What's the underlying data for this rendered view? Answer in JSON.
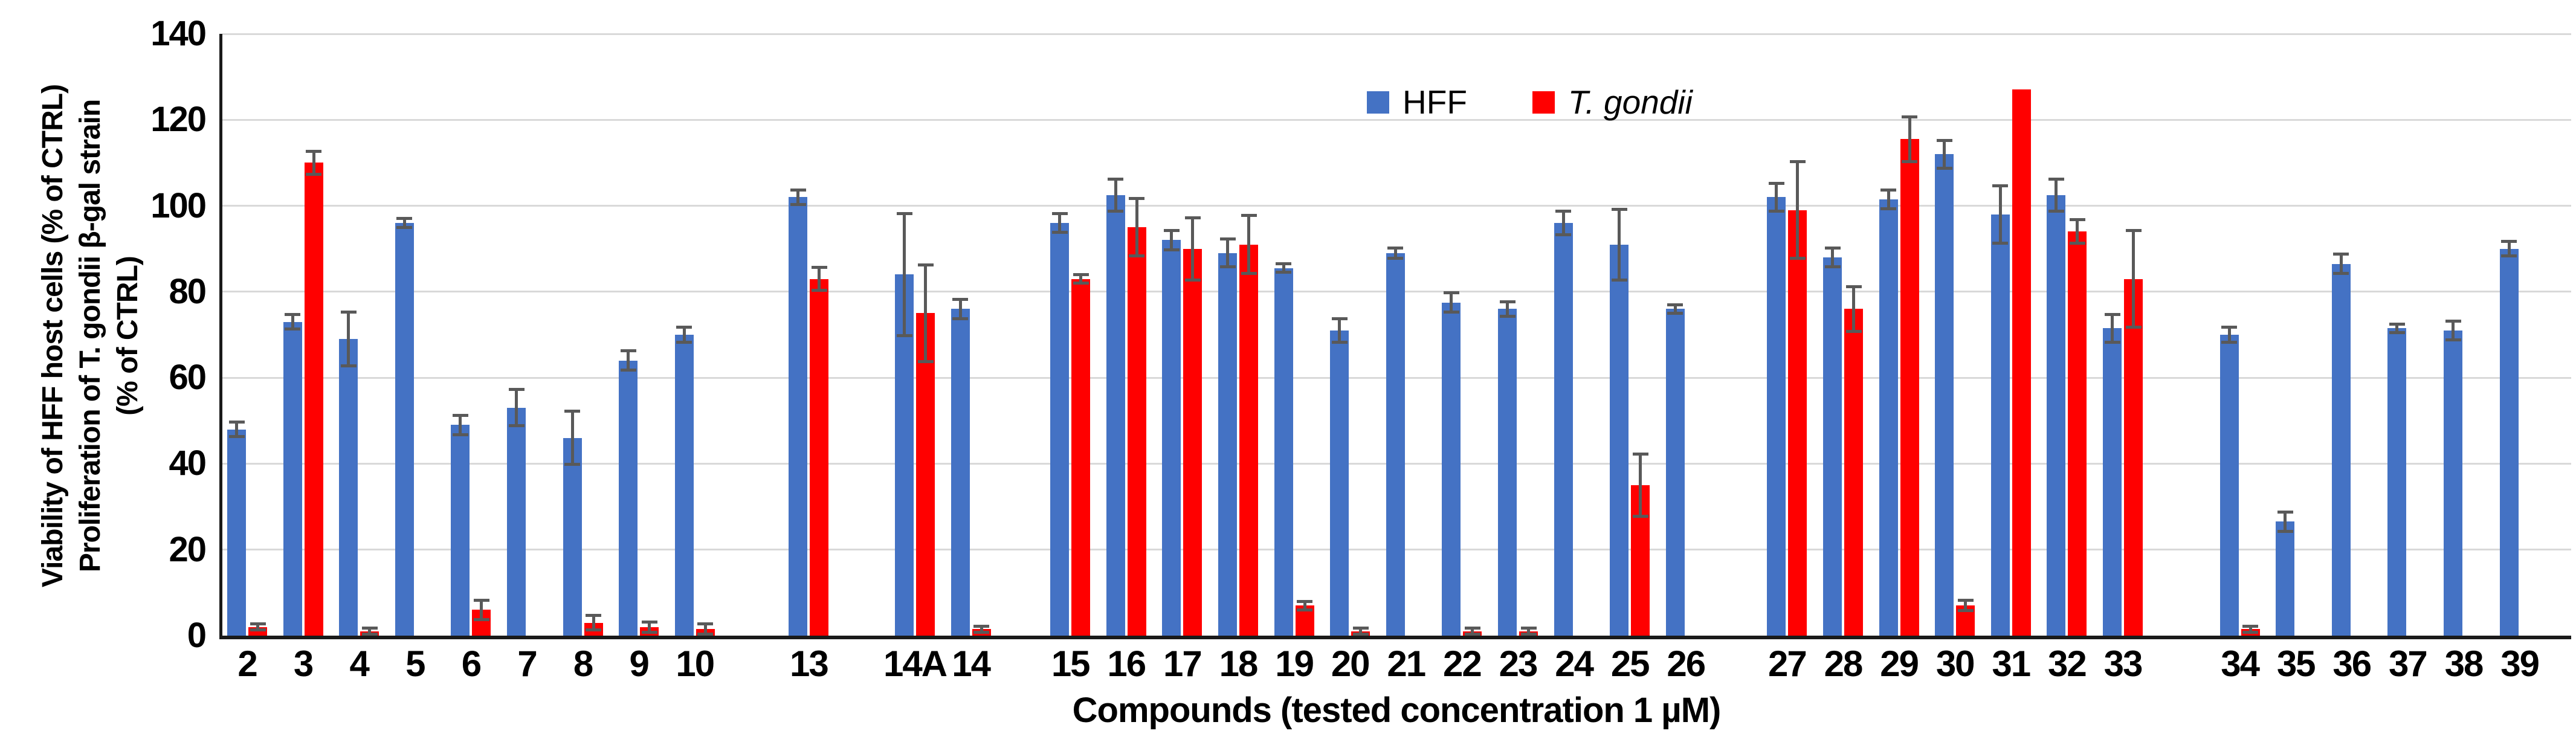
{
  "chart_data": {
    "type": "bar",
    "title": "",
    "xlabel": "Compounds (tested concentration 1 µM)",
    "ylabel_lines": [
      "Viability of HFF  host cells (% of CTRL)",
      "Proliferation of T. gondii β-gal strain",
      "(% of CTRL)"
    ],
    "ylim": [
      0,
      140
    ],
    "yticks": [
      0,
      20,
      40,
      60,
      80,
      100,
      120,
      140
    ],
    "grid": true,
    "legend_position": "top-center",
    "categories": [
      "2",
      "3",
      "4",
      "5",
      "6",
      "7",
      "8",
      "9",
      "10",
      "13",
      "14A",
      "14",
      "15",
      "16",
      "17",
      "18",
      "19",
      "20",
      "21",
      "22",
      "23",
      "24",
      "25",
      "26",
      "27",
      "28",
      "29",
      "30",
      "31",
      "32",
      "33",
      "34",
      "35",
      "36",
      "37",
      "38",
      "39"
    ],
    "group_breaks_after": [
      "10",
      "13",
      "14",
      "26",
      "33"
    ],
    "series": [
      {
        "name": "HFF",
        "color": "#4472C4",
        "italic": false,
        "values": [
          48,
          73,
          69,
          96,
          49,
          53,
          46,
          64,
          70,
          102,
          84,
          76,
          96,
          102.5,
          92,
          89,
          85.5,
          71,
          89,
          77.5,
          76,
          96,
          91,
          76,
          102,
          88,
          101.5,
          112,
          98,
          102.5,
          71.5,
          70,
          26.5,
          86.5,
          71.5,
          71,
          90
        ],
        "errors": [
          1.5,
          1.5,
          6,
          0.8,
          2,
          4,
          6,
          2,
          1.5,
          1.5,
          14,
          2,
          2,
          3.5,
          2,
          3,
          0.8,
          2.5,
          1,
          2,
          1.5,
          2.5,
          8,
          0.8,
          3,
          2,
          2,
          3,
          6.5,
          3.5,
          3,
          1.5,
          2,
          2,
          0.8,
          2,
          1.5
        ]
      },
      {
        "name": "T. gondii",
        "color": "#FF0000",
        "italic": true,
        "values": [
          2,
          110,
          1,
          0,
          6,
          0,
          3,
          2,
          1.5,
          83,
          75,
          1.5,
          83,
          95,
          90,
          91,
          7,
          1,
          0,
          1,
          1,
          0,
          35,
          0,
          99,
          76,
          115.5,
          7,
          127,
          94,
          83,
          1.5,
          0,
          0,
          0,
          0,
          0
        ],
        "errors": [
          0.5,
          2.5,
          0.5,
          0,
          2,
          0,
          1.5,
          1,
          1,
          2.5,
          11,
          0.5,
          0.8,
          6.5,
          7,
          6.5,
          0.8,
          0.5,
          0,
          0.5,
          0.5,
          0,
          7,
          0,
          11,
          5,
          5,
          1,
          0,
          2.5,
          11,
          0.5,
          0,
          0,
          0,
          0,
          0
        ]
      }
    ],
    "error_bar_color": "#595959",
    "gridline_color": "#D9D9D9",
    "axis_color": "#1a1a1a"
  }
}
